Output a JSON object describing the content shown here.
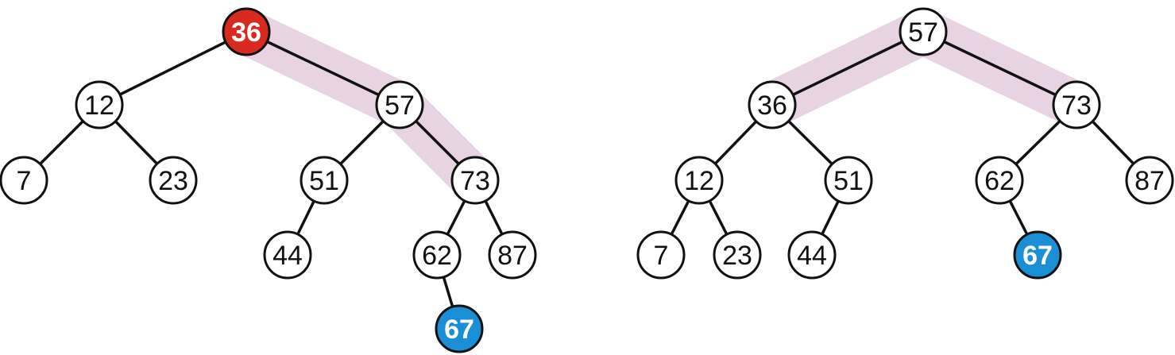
{
  "colors": {
    "background": "#ffffff",
    "node_fill": "#ffffff",
    "edge": "#111111",
    "highlight_band": "#e8d3e3",
    "root_red": "#d92a1f",
    "inserted_blue": "#1a8fd6"
  },
  "trees": [
    {
      "id": "before",
      "nodes": [
        {
          "id": "n36",
          "label": "36",
          "style": "red"
        },
        {
          "id": "n12",
          "label": "12",
          "style": "plain"
        },
        {
          "id": "n57",
          "label": "57",
          "style": "plain"
        },
        {
          "id": "n7",
          "label": "7",
          "style": "plain"
        },
        {
          "id": "n23",
          "label": "23",
          "style": "plain"
        },
        {
          "id": "n51",
          "label": "51",
          "style": "plain"
        },
        {
          "id": "n73",
          "label": "73",
          "style": "plain"
        },
        {
          "id": "n44",
          "label": "44",
          "style": "plain"
        },
        {
          "id": "n62",
          "label": "62",
          "style": "plain"
        },
        {
          "id": "n87",
          "label": "87",
          "style": "plain"
        },
        {
          "id": "n67",
          "label": "67",
          "style": "blue"
        }
      ],
      "edges": [
        [
          "n36",
          "n12"
        ],
        [
          "n36",
          "n57"
        ],
        [
          "n12",
          "n7"
        ],
        [
          "n12",
          "n23"
        ],
        [
          "n57",
          "n51"
        ],
        [
          "n57",
          "n73"
        ],
        [
          "n51",
          "n44"
        ],
        [
          "n73",
          "n62"
        ],
        [
          "n73",
          "n87"
        ],
        [
          "n62",
          "n67"
        ]
      ],
      "highlight_path": [
        "n36",
        "n57",
        "n73"
      ]
    },
    {
      "id": "after",
      "nodes": [
        {
          "id": "m57",
          "label": "57",
          "style": "plain"
        },
        {
          "id": "m36",
          "label": "36",
          "style": "plain"
        },
        {
          "id": "m73",
          "label": "73",
          "style": "plain"
        },
        {
          "id": "m12",
          "label": "12",
          "style": "plain"
        },
        {
          "id": "m51",
          "label": "51",
          "style": "plain"
        },
        {
          "id": "m62",
          "label": "62",
          "style": "plain"
        },
        {
          "id": "m87",
          "label": "87",
          "style": "plain"
        },
        {
          "id": "m7",
          "label": "7",
          "style": "plain"
        },
        {
          "id": "m23",
          "label": "23",
          "style": "plain"
        },
        {
          "id": "m44",
          "label": "44",
          "style": "plain"
        },
        {
          "id": "m67",
          "label": "67",
          "style": "blue"
        }
      ],
      "edges": [
        [
          "m57",
          "m36"
        ],
        [
          "m57",
          "m73"
        ],
        [
          "m36",
          "m12"
        ],
        [
          "m36",
          "m51"
        ],
        [
          "m73",
          "m62"
        ],
        [
          "m73",
          "m87"
        ],
        [
          "m12",
          "m7"
        ],
        [
          "m12",
          "m23"
        ],
        [
          "m51",
          "m44"
        ],
        [
          "m62",
          "m67"
        ]
      ],
      "highlight_path": [
        "m36",
        "m57",
        "m73"
      ]
    }
  ]
}
